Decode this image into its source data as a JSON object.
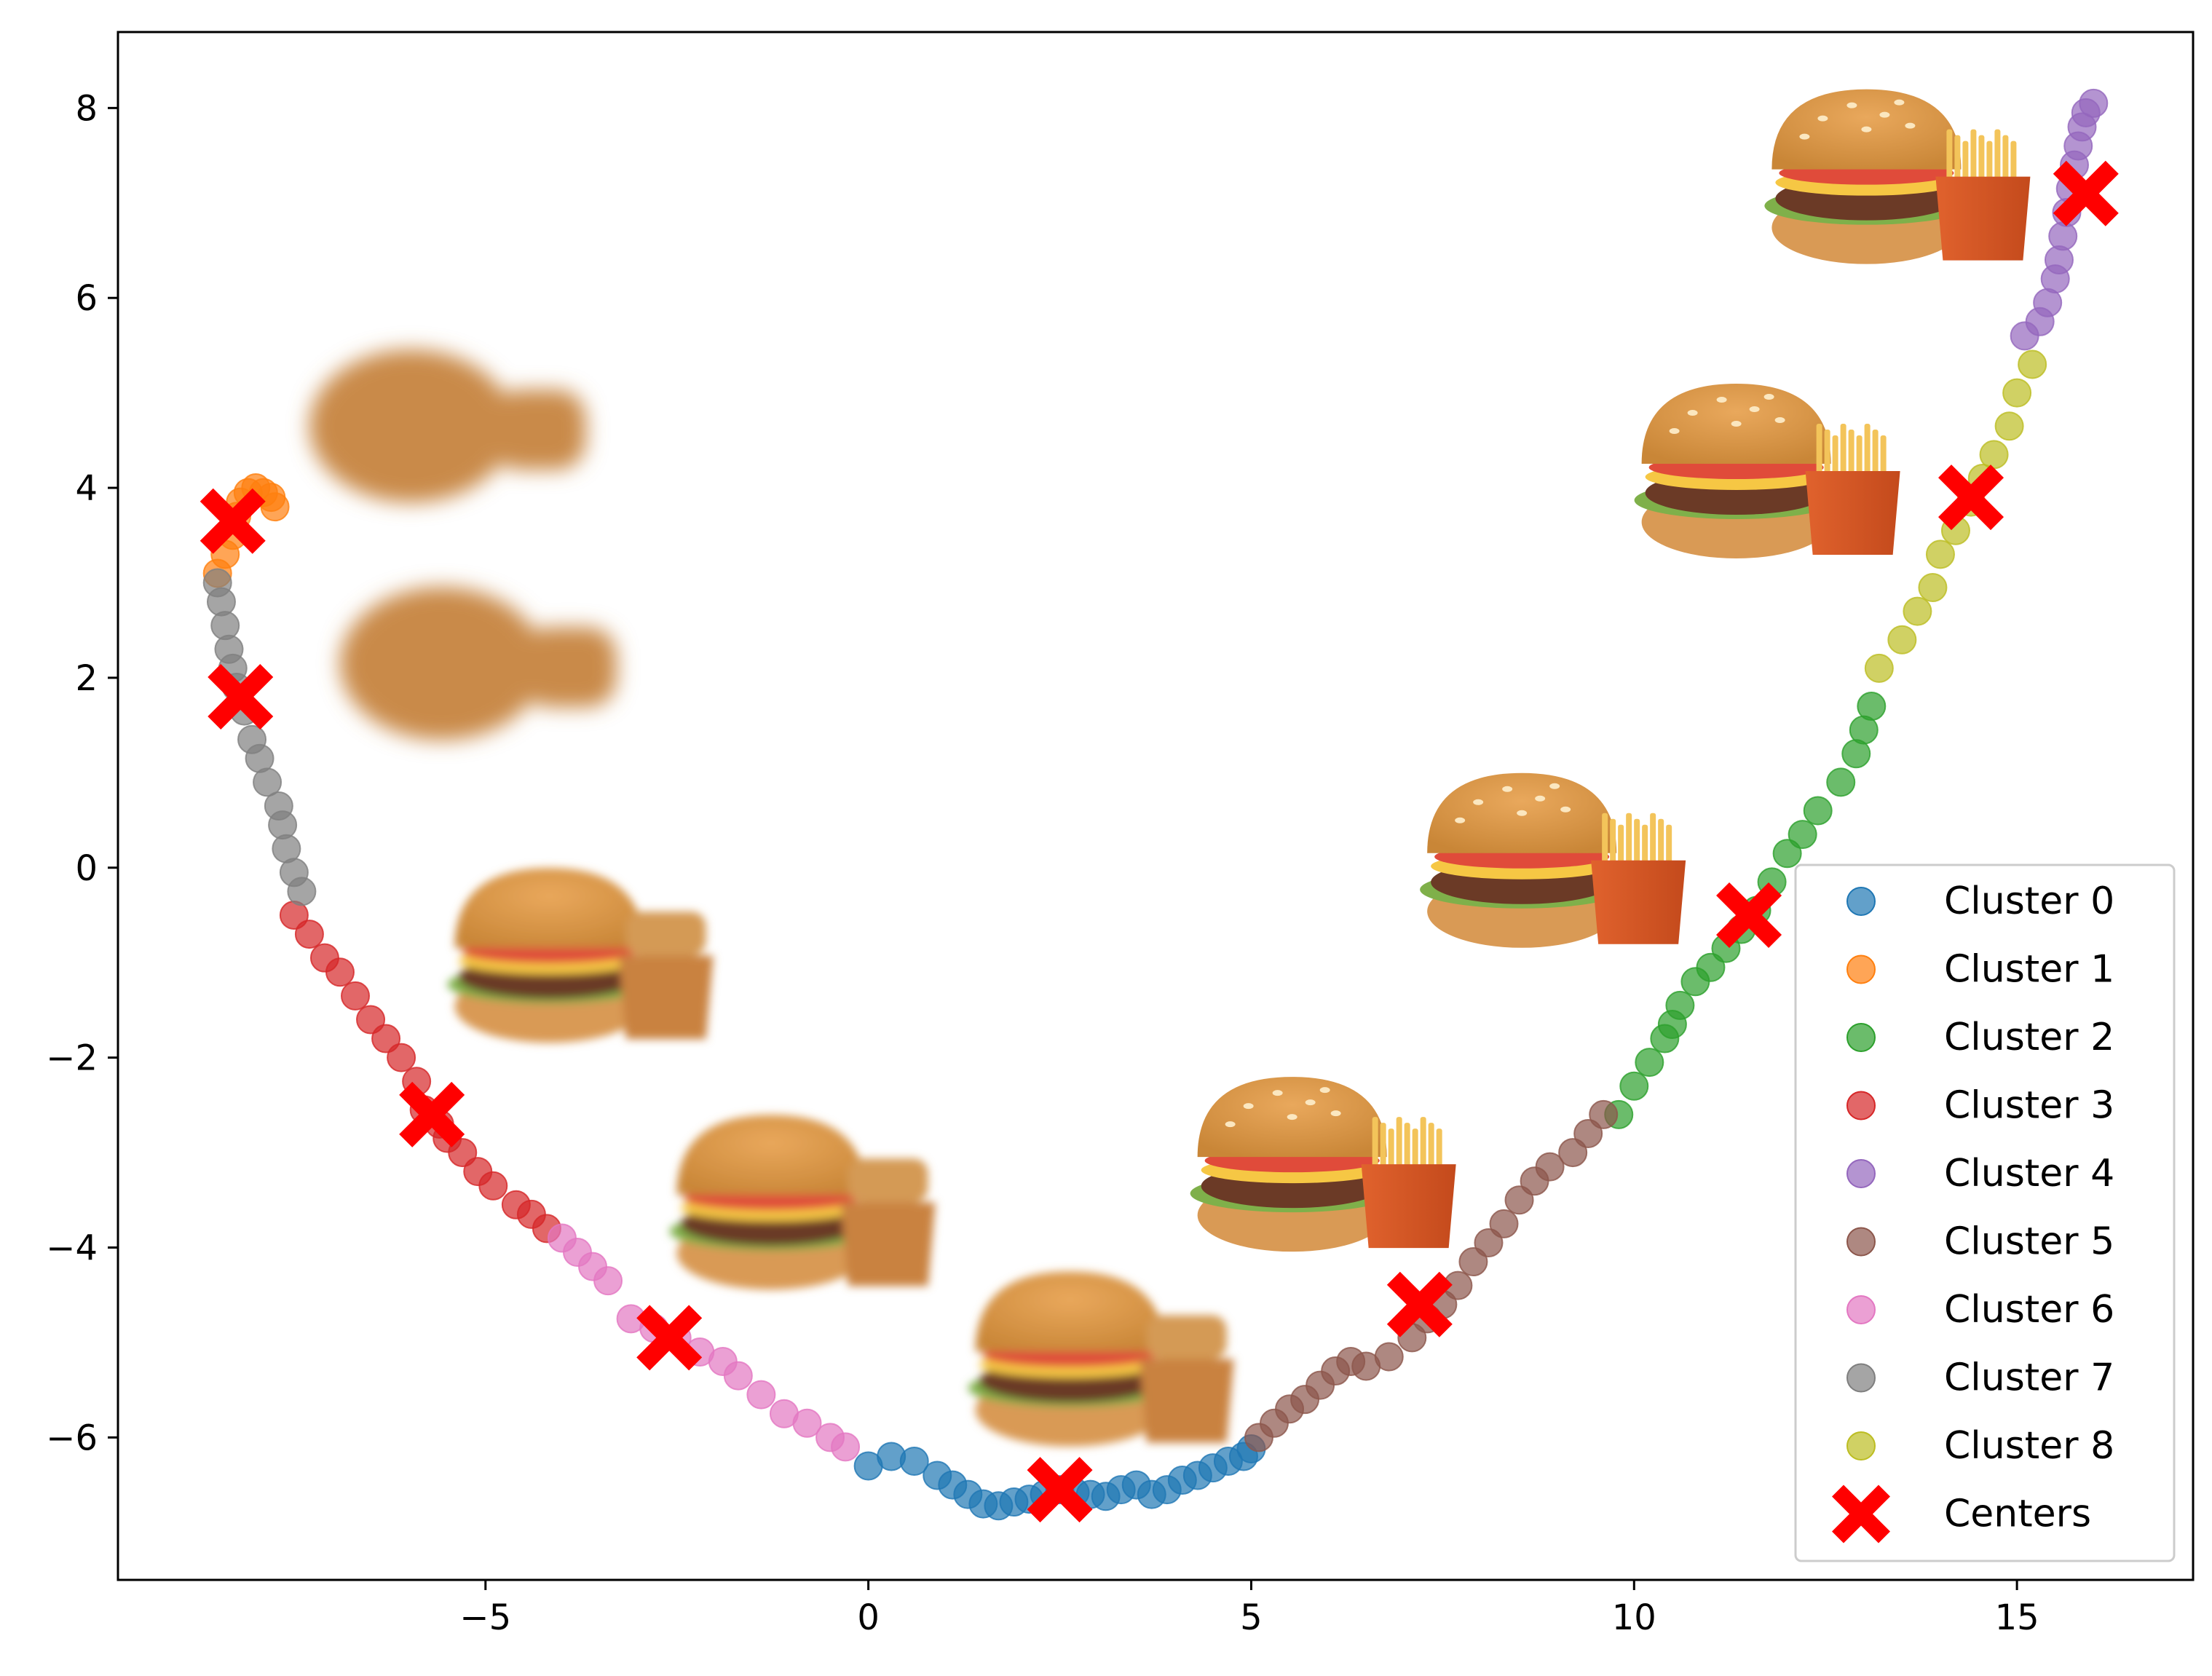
{
  "chart_data": {
    "type": "scatter",
    "title": "",
    "xlabel": "",
    "ylabel": "",
    "xlim": [
      -9.8,
      17.3
    ],
    "ylim": [
      -7.5,
      8.8
    ],
    "x_ticks": [
      -5,
      0,
      5,
      10,
      15
    ],
    "y_ticks": [
      -6,
      -4,
      -2,
      0,
      2,
      4,
      6,
      8
    ],
    "x_tick_labels": [
      "−5",
      "0",
      "5",
      "10",
      "15"
    ],
    "y_tick_labels": [
      "−6",
      "−4",
      "−2",
      "0",
      "2",
      "4",
      "6",
      "8"
    ],
    "grid": false,
    "legend_position": "bottom-right",
    "series": [
      {
        "name": "Cluster 0",
        "color": "#1f77b4",
        "points": [
          [
            0.0,
            -6.3
          ],
          [
            0.3,
            -6.2
          ],
          [
            0.6,
            -6.25
          ],
          [
            0.9,
            -6.4
          ],
          [
            1.1,
            -6.5
          ],
          [
            1.3,
            -6.6
          ],
          [
            1.5,
            -6.7
          ],
          [
            1.7,
            -6.72
          ],
          [
            1.9,
            -6.68
          ],
          [
            2.1,
            -6.65
          ],
          [
            2.3,
            -6.6
          ],
          [
            2.5,
            -6.55
          ],
          [
            2.7,
            -6.58
          ],
          [
            2.9,
            -6.6
          ],
          [
            3.1,
            -6.62
          ],
          [
            3.3,
            -6.55
          ],
          [
            3.5,
            -6.5
          ],
          [
            3.7,
            -6.6
          ],
          [
            3.9,
            -6.55
          ],
          [
            4.1,
            -6.45
          ],
          [
            4.3,
            -6.4
          ],
          [
            4.5,
            -6.32
          ],
          [
            4.7,
            -6.25
          ],
          [
            4.9,
            -6.2
          ],
          [
            5.0,
            -6.12
          ]
        ]
      },
      {
        "name": "Cluster 1",
        "color": "#ff7f0e",
        "points": [
          [
            -8.5,
            3.1
          ],
          [
            -8.4,
            3.3
          ],
          [
            -8.3,
            3.5
          ],
          [
            -8.25,
            3.7
          ],
          [
            -8.2,
            3.85
          ],
          [
            -8.1,
            3.95
          ],
          [
            -8.0,
            4.0
          ],
          [
            -7.9,
            3.95
          ],
          [
            -7.8,
            3.9
          ],
          [
            -7.75,
            3.8
          ]
        ]
      },
      {
        "name": "Cluster 2",
        "color": "#2ca02c",
        "points": [
          [
            9.8,
            -2.6
          ],
          [
            10.0,
            -2.3
          ],
          [
            10.2,
            -2.05
          ],
          [
            10.4,
            -1.8
          ],
          [
            10.5,
            -1.65
          ],
          [
            10.6,
            -1.45
          ],
          [
            10.8,
            -1.2
          ],
          [
            11.0,
            -1.05
          ],
          [
            11.2,
            -0.85
          ],
          [
            11.4,
            -0.65
          ],
          [
            11.6,
            -0.45
          ],
          [
            11.8,
            -0.15
          ],
          [
            12.0,
            0.15
          ],
          [
            12.2,
            0.35
          ],
          [
            12.4,
            0.6
          ],
          [
            12.7,
            0.9
          ],
          [
            12.9,
            1.2
          ],
          [
            13.0,
            1.45
          ],
          [
            13.1,
            1.7
          ]
        ]
      },
      {
        "name": "Cluster 3",
        "color": "#d62728",
        "points": [
          [
            -7.5,
            -0.5
          ],
          [
            -7.3,
            -0.7
          ],
          [
            -7.1,
            -0.95
          ],
          [
            -6.9,
            -1.1
          ],
          [
            -6.7,
            -1.35
          ],
          [
            -6.5,
            -1.6
          ],
          [
            -6.3,
            -1.8
          ],
          [
            -6.1,
            -2.0
          ],
          [
            -5.9,
            -2.25
          ],
          [
            -5.8,
            -2.55
          ],
          [
            -5.6,
            -2.7
          ],
          [
            -5.5,
            -2.85
          ],
          [
            -5.3,
            -3.0
          ],
          [
            -5.1,
            -3.2
          ],
          [
            -4.9,
            -3.35
          ],
          [
            -4.6,
            -3.55
          ],
          [
            -4.4,
            -3.65
          ],
          [
            -4.2,
            -3.8
          ]
        ]
      },
      {
        "name": "Cluster 4",
        "color": "#9467bd",
        "points": [
          [
            15.1,
            5.6
          ],
          [
            15.3,
            5.75
          ],
          [
            15.4,
            5.95
          ],
          [
            15.5,
            6.2
          ],
          [
            15.55,
            6.4
          ],
          [
            15.6,
            6.65
          ],
          [
            15.65,
            6.9
          ],
          [
            15.7,
            7.15
          ],
          [
            15.75,
            7.4
          ],
          [
            15.8,
            7.6
          ],
          [
            15.85,
            7.8
          ],
          [
            15.9,
            7.95
          ],
          [
            16.0,
            8.05
          ]
        ]
      },
      {
        "name": "Cluster 5",
        "color": "#8c564b",
        "points": [
          [
            5.1,
            -6.0
          ],
          [
            5.3,
            -5.85
          ],
          [
            5.5,
            -5.7
          ],
          [
            5.7,
            -5.6
          ],
          [
            5.9,
            -5.45
          ],
          [
            6.1,
            -5.3
          ],
          [
            6.3,
            -5.2
          ],
          [
            6.5,
            -5.25
          ],
          [
            6.8,
            -5.15
          ],
          [
            7.1,
            -4.95
          ],
          [
            7.3,
            -4.75
          ],
          [
            7.5,
            -4.6
          ],
          [
            7.7,
            -4.4
          ],
          [
            7.9,
            -4.15
          ],
          [
            8.1,
            -3.95
          ],
          [
            8.3,
            -3.75
          ],
          [
            8.5,
            -3.5
          ],
          [
            8.7,
            -3.3
          ],
          [
            8.9,
            -3.15
          ],
          [
            9.2,
            -3.0
          ],
          [
            9.4,
            -2.8
          ],
          [
            9.6,
            -2.6
          ]
        ]
      },
      {
        "name": "Cluster 6",
        "color": "#e377c2",
        "points": [
          [
            -4.0,
            -3.9
          ],
          [
            -3.8,
            -4.05
          ],
          [
            -3.6,
            -4.2
          ],
          [
            -3.4,
            -4.35
          ],
          [
            -3.1,
            -4.75
          ],
          [
            -2.8,
            -4.85
          ],
          [
            -2.5,
            -4.95
          ],
          [
            -2.2,
            -5.1
          ],
          [
            -1.9,
            -5.2
          ],
          [
            -1.7,
            -5.35
          ],
          [
            -1.4,
            -5.55
          ],
          [
            -1.1,
            -5.75
          ],
          [
            -0.8,
            -5.85
          ],
          [
            -0.5,
            -6.0
          ],
          [
            -0.3,
            -6.1
          ]
        ]
      },
      {
        "name": "Cluster 7",
        "color": "#7f7f7f",
        "points": [
          [
            -8.5,
            3.0
          ],
          [
            -8.45,
            2.8
          ],
          [
            -8.4,
            2.55
          ],
          [
            -8.35,
            2.3
          ],
          [
            -8.3,
            2.1
          ],
          [
            -8.25,
            1.9
          ],
          [
            -8.15,
            1.65
          ],
          [
            -8.05,
            1.35
          ],
          [
            -7.95,
            1.15
          ],
          [
            -7.85,
            0.9
          ],
          [
            -7.7,
            0.65
          ],
          [
            -7.65,
            0.45
          ],
          [
            -7.6,
            0.2
          ],
          [
            -7.5,
            -0.05
          ],
          [
            -7.4,
            -0.25
          ]
        ]
      },
      {
        "name": "Cluster 8",
        "color": "#bcbd22",
        "points": [
          [
            13.2,
            2.1
          ],
          [
            13.5,
            2.4
          ],
          [
            13.7,
            2.7
          ],
          [
            13.9,
            2.95
          ],
          [
            14.0,
            3.3
          ],
          [
            14.2,
            3.55
          ],
          [
            14.4,
            3.85
          ],
          [
            14.55,
            4.1
          ],
          [
            14.7,
            4.35
          ],
          [
            14.9,
            4.65
          ],
          [
            15.0,
            5.0
          ],
          [
            15.2,
            5.3
          ]
        ]
      }
    ],
    "centers": {
      "name": "Centers",
      "color": "#ff0000",
      "points": [
        [
          2.5,
          -6.55
        ],
        [
          -8.3,
          3.65
        ],
        [
          11.5,
          -0.5
        ],
        [
          -5.7,
          -2.6
        ],
        [
          15.9,
          7.1
        ],
        [
          7.2,
          -4.6
        ],
        [
          -2.6,
          -4.95
        ],
        [
          -8.2,
          1.8
        ],
        [
          14.4,
          3.9
        ]
      ]
    },
    "images": [
      {
        "kind": "blob",
        "x": -5.4,
        "y": 4.65
      },
      {
        "kind": "blob",
        "x": -5.0,
        "y": 2.15
      },
      {
        "kind": "blurred-burger",
        "x": -3.5,
        "y": -1.0
      },
      {
        "kind": "blurred-burger",
        "x": -0.6,
        "y": -3.6
      },
      {
        "kind": "blurred-burger",
        "x": 3.3,
        "y": -5.25
      },
      {
        "kind": "burger",
        "x": 6.2,
        "y": -3.2
      },
      {
        "kind": "burger",
        "x": 9.2,
        "y": 0.0
      },
      {
        "kind": "burger",
        "x": 12.0,
        "y": 4.1
      },
      {
        "kind": "burger",
        "x": 13.7,
        "y": 7.2
      }
    ]
  }
}
